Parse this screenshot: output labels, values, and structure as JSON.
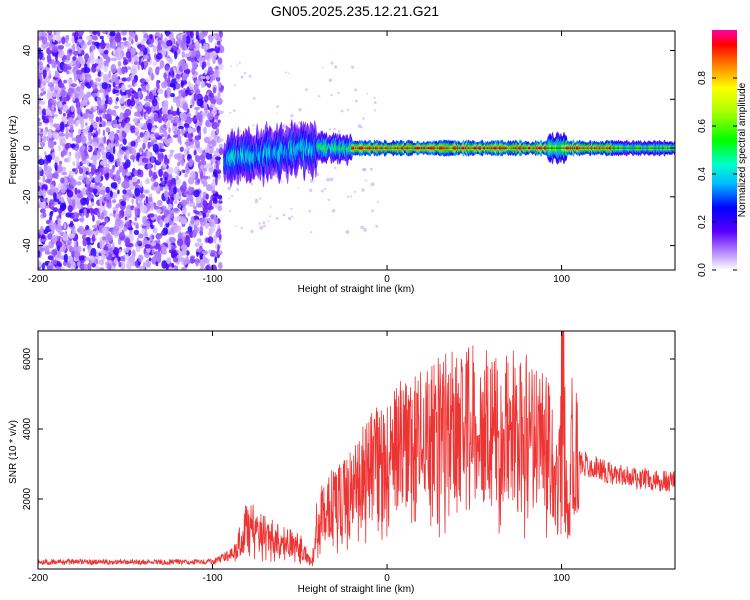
{
  "title": "GN05.2025.235.12.21.G21",
  "chart_data": [
    {
      "type": "heatmap",
      "name": "spectrogram",
      "xlabel": "Height of straight line (km)",
      "ylabel": "Frequency (Hz)",
      "xlim": [
        -200,
        165
      ],
      "ylim": [
        -50,
        48
      ],
      "xticks": [
        -200,
        -100,
        0,
        100
      ],
      "yticks": [
        -40,
        -20,
        0,
        20,
        40
      ],
      "noise_region_x": [
        -200,
        -95
      ],
      "signal_center_hz": 0,
      "colorbar": {
        "label": "Normalized spectral amplitude",
        "range": [
          0,
          1
        ],
        "ticks": [
          "0.0",
          "0.2",
          "0.4",
          "0.6",
          "0.8"
        ],
        "tick_values": [
          0,
          0.2,
          0.4,
          0.6,
          0.8
        ]
      }
    },
    {
      "type": "line",
      "name": "snr",
      "xlabel": "Height of straight line (km)",
      "ylabel": "SNR (10 * v/v)",
      "xlim": [
        -200,
        165
      ],
      "ylim": [
        0,
        6800
      ],
      "xticks": [
        -200,
        -100,
        0,
        100
      ],
      "yticks": [
        2000,
        4000,
        6000
      ],
      "color": "#ee3333",
      "series": [
        {
          "name": "SNR",
          "x": [
            -200,
            -150,
            -100,
            -88,
            -80,
            -70,
            -60,
            -50,
            -43,
            -40,
            -30,
            -20,
            -10,
            0,
            10,
            20,
            30,
            40,
            50,
            60,
            70,
            80,
            90,
            95,
            98,
            100,
            101,
            102,
            104,
            106,
            110,
            120,
            130,
            140,
            150,
            160,
            165
          ],
          "y": [
            200,
            200,
            200,
            450,
            1300,
            1000,
            800,
            700,
            150,
            1500,
            1900,
            2200,
            2900,
            3100,
            3600,
            3800,
            3900,
            4100,
            4150,
            4100,
            4150,
            3950,
            3700,
            3200,
            2000,
            5000,
            6200,
            3500,
            1000,
            3800,
            3050,
            2900,
            2700,
            2600,
            2550,
            2500,
            2500
          ]
        }
      ]
    }
  ]
}
